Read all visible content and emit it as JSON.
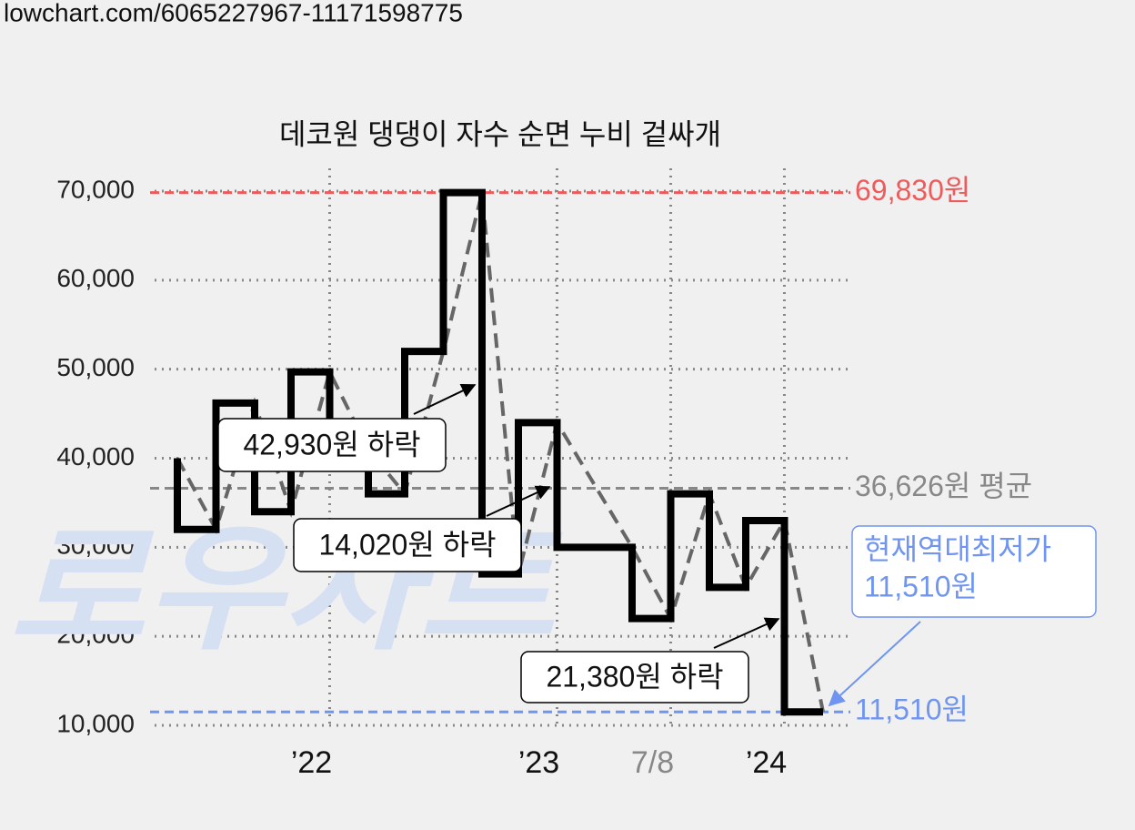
{
  "url": "lowchart.com/6065227967-11171598775",
  "watermark": "로우차트",
  "chart_data": {
    "type": "step",
    "title": "데코원 댕댕이 자수 순면 누비 겉싸개",
    "series": [
      {
        "style": "step",
        "color": "#000000",
        "x": [
          2021.33,
          2021.33,
          2021.5,
          2021.67,
          2021.83,
          2022,
          2022.17,
          2022.33,
          2022.5,
          2022.67,
          2022.83,
          2023,
          2023.33,
          2023.5,
          2023.67,
          2023.83,
          2024,
          2024.17
        ],
        "values": [
          40000,
          32000,
          46200,
          34000,
          49700,
          41000,
          36000,
          52000,
          69830,
          27000,
          44000,
          30000,
          22000,
          36000,
          25500,
          33000,
          11510,
          11510
        ]
      },
      {
        "style": "dashed",
        "color": "#666666",
        "x": [
          2021.33,
          2021.5,
          2021.67,
          2021.83,
          2022,
          2022.17,
          2022.33,
          2022.5,
          2022.67,
          2022.83,
          2023,
          2023.33,
          2023.5,
          2023.67,
          2023.83,
          2024,
          2024.17
        ],
        "values": [
          40000,
          32000,
          46200,
          34000,
          49700,
          41000,
          36000,
          52000,
          69830,
          27000,
          44000,
          30000,
          22000,
          36000,
          25500,
          33000,
          11510
        ]
      }
    ],
    "xlim": [
      2021.23,
      2024.29
    ],
    "xticks": [
      {
        "value": 2022,
        "label": "’22"
      },
      {
        "value": 2023,
        "label": "’23"
      },
      {
        "value": 2023.5,
        "label": "7/8",
        "color": "#888888"
      },
      {
        "value": 2024,
        "label": "’24"
      }
    ],
    "ylim": [
      10000,
      70000
    ],
    "yticks": [
      {
        "value": 10000,
        "label": "10,000"
      },
      {
        "value": 20000,
        "label": "20,000"
      },
      {
        "value": 30000,
        "label": "30,000"
      },
      {
        "value": 40000,
        "label": "40,000"
      },
      {
        "value": 50000,
        "label": "50,000"
      },
      {
        "value": 60000,
        "label": "60,000"
      },
      {
        "value": 70000,
        "label": "70,000"
      }
    ],
    "grid": true,
    "reference_lines": [
      {
        "value": 69830,
        "label": "69,830원",
        "color": "#f05a5a"
      },
      {
        "value": 36626,
        "label": "36,626원 평균",
        "color": "#888888"
      },
      {
        "value": 11510,
        "label": "11,510원",
        "color": "#6f95f0"
      }
    ],
    "annotations": [
      "42,930원 하락",
      "14,020원 하락",
      "21,380원 하락"
    ],
    "callout": [
      "현재역대최저가",
      "11,510원"
    ]
  }
}
